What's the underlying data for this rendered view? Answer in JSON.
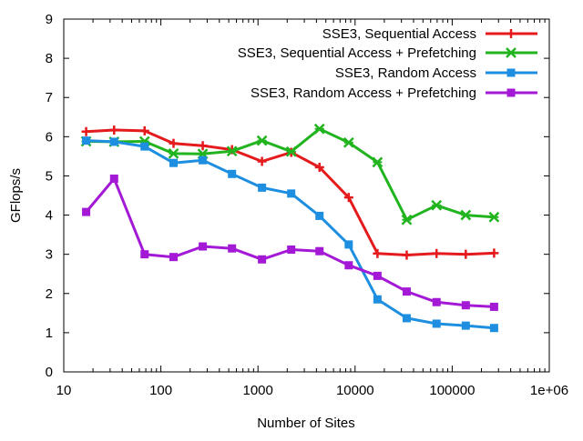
{
  "chart_data": {
    "type": "line",
    "title": "",
    "xlabel": "Number of Sites",
    "ylabel": "GFlops/s",
    "xscale": "log",
    "xlim": [
      10,
      1000000
    ],
    "ylim": [
      0,
      9
    ],
    "xticks": [
      {
        "value": 10,
        "label": "10"
      },
      {
        "value": 100,
        "label": "100"
      },
      {
        "value": 1000,
        "label": "1000"
      },
      {
        "value": 10000,
        "label": "10000"
      },
      {
        "value": 100000,
        "label": "100000"
      },
      {
        "value": 1000000,
        "label": "1e+06"
      }
    ],
    "yticks": [
      {
        "value": 0,
        "label": "0"
      },
      {
        "value": 1,
        "label": "1"
      },
      {
        "value": 2,
        "label": "2"
      },
      {
        "value": 3,
        "label": "3"
      },
      {
        "value": 4,
        "label": "4"
      },
      {
        "value": 5,
        "label": "5"
      },
      {
        "value": 6,
        "label": "6"
      },
      {
        "value": 7,
        "label": "7"
      },
      {
        "value": 8,
        "label": "8"
      },
      {
        "value": 9,
        "label": "9"
      }
    ],
    "legend_position": "top-right",
    "grid": false,
    "x": [
      17,
      33,
      68,
      135,
      270,
      540,
      1100,
      2200,
      4300,
      8600,
      17000,
      34000,
      69000,
      138000,
      270000
    ],
    "series": [
      {
        "name": "SSE3, Sequential Access",
        "color": "#e41a1c",
        "marker": "plus",
        "values": [
          6.13,
          6.17,
          6.15,
          5.83,
          5.77,
          5.67,
          5.37,
          5.6,
          5.22,
          4.45,
          3.02,
          2.98,
          3.02,
          3.0,
          3.03
        ]
      },
      {
        "name": "SSE3, Sequential Access + Prefetching",
        "color": "#21b41f",
        "marker": "cross",
        "values": [
          5.88,
          5.87,
          5.88,
          5.57,
          5.56,
          5.63,
          5.9,
          5.62,
          6.2,
          5.85,
          5.35,
          3.88,
          4.25,
          4.0,
          3.95
        ]
      },
      {
        "name": "SSE3, Random Access",
        "color": "#1e8fe0",
        "marker": "square",
        "values": [
          5.9,
          5.87,
          5.75,
          5.33,
          5.4,
          5.05,
          4.7,
          4.55,
          3.98,
          3.25,
          1.85,
          1.37,
          1.23,
          1.18,
          1.12
        ]
      },
      {
        "name": "SSE3, Random Access + Prefetching",
        "color": "#a319d6",
        "marker": "square",
        "values": [
          4.08,
          4.93,
          3.0,
          2.93,
          3.2,
          3.15,
          2.87,
          3.12,
          3.08,
          2.72,
          2.45,
          2.05,
          1.78,
          1.7,
          1.66
        ]
      }
    ]
  }
}
